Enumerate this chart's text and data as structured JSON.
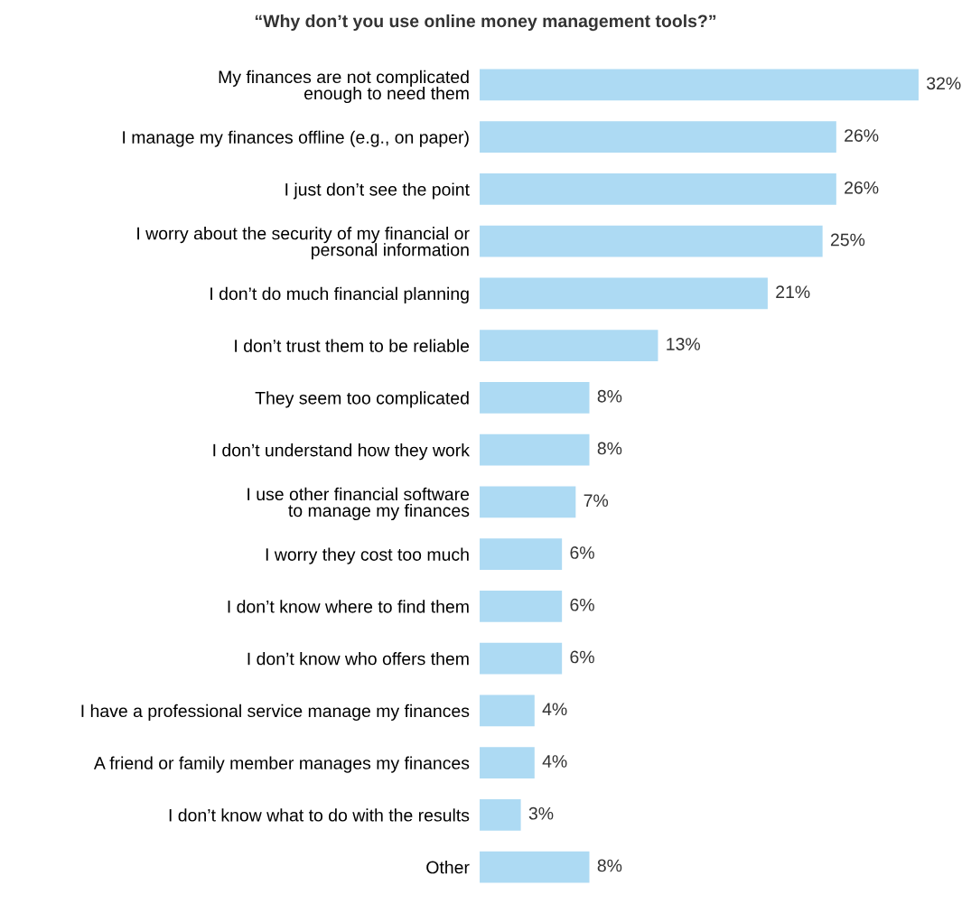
{
  "chart_data": {
    "type": "bar",
    "orientation": "horizontal",
    "title": "“Why don’t you use online money management tools?”",
    "categories": [
      "My finances are not complicated\nenough to need them",
      "I manage my finances offline (e.g., on paper)",
      "I just don’t see the point",
      "I worry about the security of my financial or\npersonal information",
      "I don’t do much financial planning",
      "I don’t trust them to be reliable",
      "They seem too complicated",
      "I don’t understand how they work",
      "I use other financial software\nto manage my finances",
      "I worry they cost too much",
      "I don’t know where to find them",
      "I don’t know who offers them",
      "I have a professional service manage my finances",
      "A friend or family member manages my finances",
      "I don’t know what to do with the results",
      "Other"
    ],
    "values": [
      32,
      26,
      26,
      25,
      21,
      13,
      8,
      8,
      7,
      6,
      6,
      6,
      4,
      4,
      3,
      8
    ],
    "value_labels": [
      "32%",
      "26%",
      "26%",
      "25%",
      "21%",
      "13%",
      "8%",
      "8%",
      "7%",
      "6%",
      "6%",
      "6%",
      "4%",
      "4%",
      "3%",
      "8%"
    ],
    "color": "#addaf3"
  }
}
